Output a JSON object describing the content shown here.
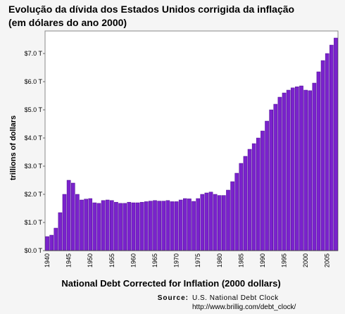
{
  "chart_data": {
    "type": "bar",
    "title": "Evolução da dívida dos Estados Unidos corrigida da inflação",
    "subtitle": "(em dólares do ano 2000)",
    "y_label": "trillions of dollars",
    "x_label": "National Debt Corrected for Inflation (2000 dollars)",
    "source_label": "Source:",
    "source_name": "U.S. National Debt Clock",
    "source_url": "http://www.brillig.com/debt_clock/",
    "categories": [
      "1940",
      null,
      null,
      null,
      null,
      "1945",
      null,
      null,
      null,
      null,
      "1950",
      null,
      null,
      null,
      null,
      "1955",
      null,
      null,
      null,
      null,
      "1960",
      null,
      null,
      null,
      null,
      "1965",
      null,
      null,
      null,
      null,
      "1970",
      null,
      null,
      null,
      null,
      "1975",
      null,
      null,
      null,
      null,
      "1980",
      null,
      null,
      null,
      null,
      "1985",
      null,
      null,
      null,
      null,
      "1990",
      null,
      null,
      null,
      null,
      "1995",
      null,
      null,
      null,
      null,
      "2000",
      null,
      null,
      null,
      null,
      "2005",
      null,
      null
    ],
    "values": [
      0.5,
      0.55,
      0.8,
      1.35,
      2.0,
      2.5,
      2.4,
      2.0,
      1.8,
      1.83,
      1.85,
      1.7,
      1.68,
      1.78,
      1.8,
      1.78,
      1.72,
      1.68,
      1.68,
      1.72,
      1.7,
      1.7,
      1.72,
      1.74,
      1.76,
      1.78,
      1.76,
      1.76,
      1.78,
      1.74,
      1.74,
      1.8,
      1.85,
      1.84,
      1.75,
      1.85,
      2.0,
      2.05,
      2.08,
      2.0,
      1.96,
      1.96,
      2.15,
      2.45,
      2.75,
      3.1,
      3.35,
      3.6,
      3.8,
      4.0,
      4.25,
      4.6,
      5.0,
      5.2,
      5.45,
      5.6,
      5.7,
      5.78,
      5.82,
      5.85,
      5.7,
      5.68,
      5.95,
      6.35,
      6.75,
      7.0,
      7.3,
      7.55
    ],
    "color": "#7a22cc",
    "ylim": [
      0,
      7.8
    ],
    "yticks": [
      {
        "value": 0,
        "label": "$0.0 T"
      },
      {
        "value": 1,
        "label": "$1.0 T"
      },
      {
        "value": 2,
        "label": "$2.0 T"
      },
      {
        "value": 3,
        "label": "$3.0 T"
      },
      {
        "value": 4,
        "label": "$4.0 T"
      },
      {
        "value": 5,
        "label": "$5.0 T"
      },
      {
        "value": 6,
        "label": "$6.0 T"
      },
      {
        "value": 7,
        "label": "$7.0 T"
      }
    ],
    "grid": false
  }
}
